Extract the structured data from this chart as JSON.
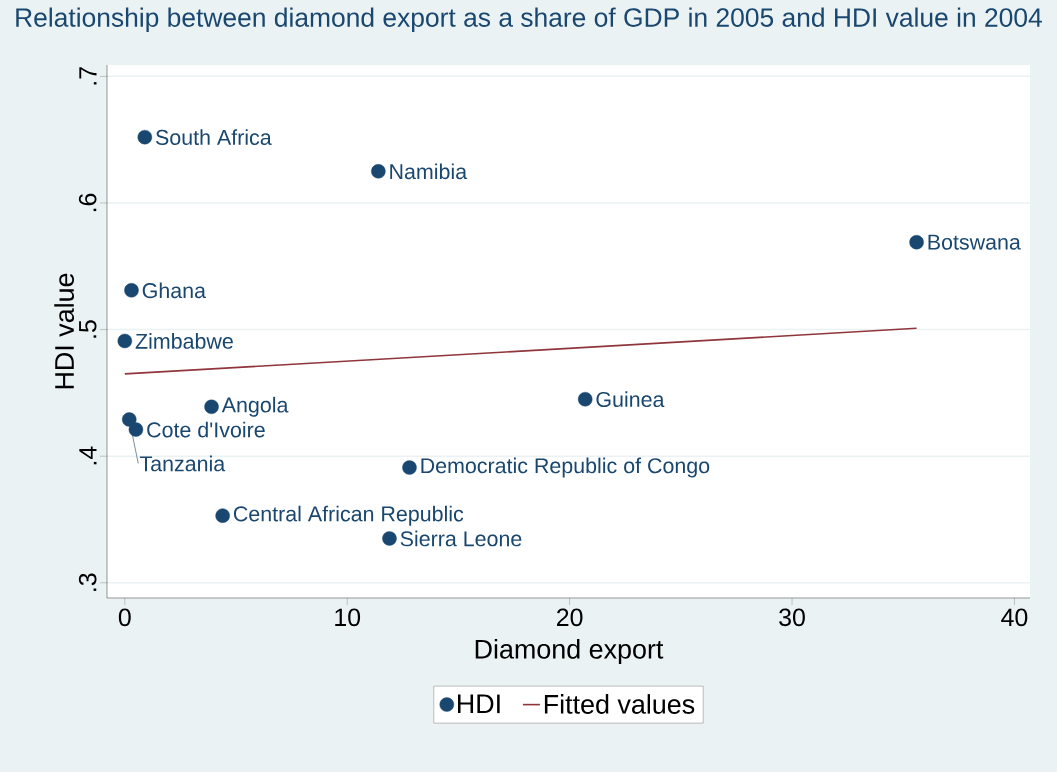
{
  "chart_data": {
    "type": "scatter",
    "title": "Relationship between diamond export as a share of GDP in 2005 and HDI value in 2004",
    "xlabel": "Diamond export",
    "ylabel": "HDI value",
    "series": [
      {
        "name": "HDI",
        "color": "#1a476f",
        "marker": "circle",
        "x": [
          0.9,
          11.4,
          35.6,
          0.3,
          0.0,
          3.9,
          20.7,
          0.2,
          0.5,
          12.8,
          4.4,
          11.9
        ],
        "values": [
          0.652,
          0.625,
          0.569,
          0.531,
          0.491,
          0.439,
          0.445,
          0.429,
          0.421,
          0.391,
          0.353,
          0.335
        ]
      },
      {
        "name": "Fitted values",
        "type": "line",
        "color": "#90353b",
        "marker": "none",
        "x": [
          0.0,
          35.6
        ],
        "values": [
          0.465,
          0.501
        ]
      }
    ],
    "annotations": [
      {
        "text": "South Africa",
        "x": 0.9,
        "y": 0.652
      },
      {
        "text": "Namibia",
        "x": 11.4,
        "y": 0.625
      },
      {
        "text": "Botswana",
        "x": 35.6,
        "y": 0.569
      },
      {
        "text": "Ghana",
        "x": 0.3,
        "y": 0.531
      },
      {
        "text": "Zimbabwe",
        "x": 0.0,
        "y": 0.491
      },
      {
        "text": "Angola",
        "x": 3.9,
        "y": 0.439
      },
      {
        "text": "Guinea",
        "x": 20.7,
        "y": 0.445
      },
      {
        "text": "Tanzania",
        "x": 0.2,
        "y": 0.429
      },
      {
        "text": "Cote d'Ivoire",
        "x": 0.5,
        "y": 0.421
      },
      {
        "text": "Democratic Republic of Congo",
        "x": 12.8,
        "y": 0.391
      },
      {
        "text": "Central African Republic",
        "x": 4.4,
        "y": 0.353
      },
      {
        "text": "Sierra Leone",
        "x": 11.9,
        "y": 0.335
      }
    ],
    "xlim": [
      -0.8,
      40.7
    ],
    "ylim": [
      0.288,
      0.709
    ],
    "xticks": [
      0,
      10,
      20,
      30,
      40
    ],
    "yticks": [
      {
        "value": 0.3,
        "label": ".3"
      },
      {
        "value": 0.4,
        "label": ".4"
      },
      {
        "value": 0.5,
        "label": ".5"
      },
      {
        "value": 0.6,
        "label": ".6"
      },
      {
        "value": 0.7,
        "label": ".7"
      }
    ],
    "grid": "y",
    "legend": "bottom"
  }
}
